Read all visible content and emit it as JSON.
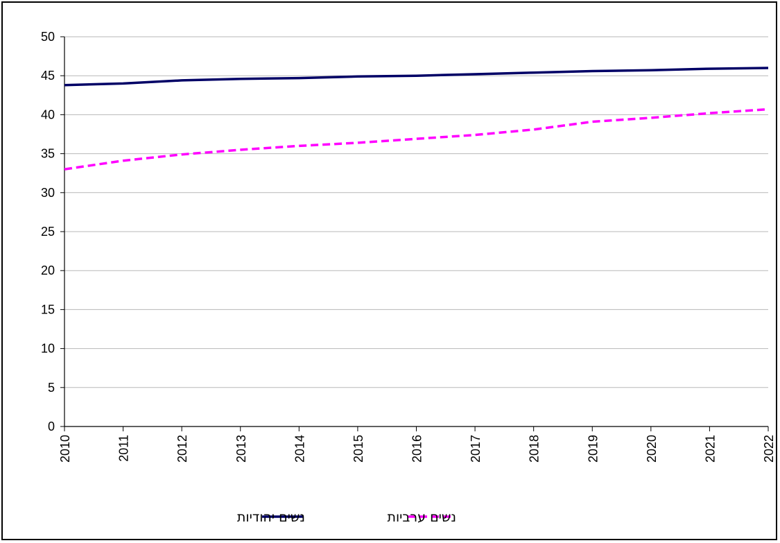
{
  "chart_data": {
    "type": "line",
    "title": "",
    "xlabel": "",
    "ylabel": "",
    "x": [
      "2010",
      "2011",
      "2012",
      "2013",
      "2014",
      "2015",
      "2016",
      "2017",
      "2018",
      "2019",
      "2020",
      "2021",
      "2022"
    ],
    "ylim": [
      0,
      50
    ],
    "yticks": [
      "0",
      "5",
      "10",
      "15",
      "20",
      "25",
      "30",
      "35",
      "40",
      "45",
      "50"
    ],
    "grid": "horizontal",
    "legend_position": "bottom",
    "series": [
      {
        "name": "נשים יהודיות",
        "values": [
          43.8,
          44.0,
          44.4,
          44.6,
          44.7,
          44.9,
          45.0,
          45.2,
          45.4,
          45.6,
          45.7,
          45.9,
          46.0
        ],
        "color": "#000066",
        "style": "solid"
      },
      {
        "name": "נשים ערביות",
        "values": [
          33.0,
          34.1,
          34.9,
          35.5,
          36.0,
          36.4,
          36.9,
          37.4,
          38.1,
          39.1,
          39.6,
          40.2,
          40.7
        ],
        "color": "#ff00ff",
        "style": "dashed"
      }
    ]
  }
}
